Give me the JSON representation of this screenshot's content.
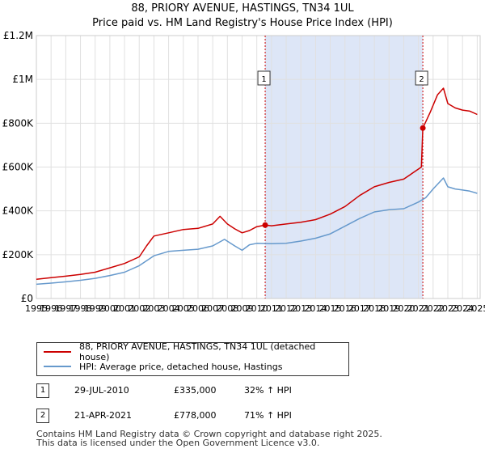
{
  "title_line1": "88, PRIORY AVENUE, HASTINGS, TN34 1UL",
  "title_line2": "Price paid vs. HM Land Registry's House Price Index (HPI)",
  "colors": {
    "property": "#cc0000",
    "hpi": "#6699cc",
    "shade": "#dde6f7",
    "vline": "#cc0000",
    "grid": "#e0e0e0"
  },
  "legend": [
    {
      "label": "88, PRIORY AVENUE, HASTINGS, TN34 1UL (detached house)"
    },
    {
      "label": "HPI: Average price, detached house, Hastings"
    }
  ],
  "transactions": [
    {
      "num": "1",
      "date": "29-JUL-2010",
      "price": "£335,000",
      "hpi_change": "32% ↑ HPI"
    },
    {
      "num": "2",
      "date": "21-APR-2021",
      "price": "£778,000",
      "hpi_change": "71% ↑ HPI"
    }
  ],
  "footer": {
    "line1": "Contains HM Land Registry data © Crown copyright and database right 2025.",
    "line2": "This data is licensed under the Open Government Licence v3.0."
  },
  "chart_data": {
    "type": "line",
    "xlabel": "",
    "ylabel": "",
    "xlim": [
      1995,
      2025.2
    ],
    "ylim": [
      0,
      1200000
    ],
    "yticks": [
      0,
      200000,
      400000,
      600000,
      800000,
      1000000,
      1200000
    ],
    "ytick_labels": [
      "£0",
      "£200K",
      "£400K",
      "£600K",
      "£800K",
      "£1M",
      "£1.2M"
    ],
    "xticks": [
      1995,
      1996,
      1997,
      1998,
      1999,
      2000,
      2001,
      2002,
      2003,
      2004,
      2005,
      2006,
      2007,
      2008,
      2009,
      2010,
      2011,
      2012,
      2013,
      2014,
      2015,
      2016,
      2017,
      2018,
      2019,
      2020,
      2021,
      2022,
      2023,
      2024,
      2025
    ],
    "xtick_labels": [
      "1995",
      "1996",
      "1997",
      "1998",
      "1999",
      "2000",
      "2001",
      "2002",
      "2003",
      "2004",
      "2005",
      "2006",
      "2007",
      "2008",
      "2009",
      "2010",
      "2011",
      "2012",
      "2013",
      "2014",
      "2015",
      "2016",
      "2017",
      "2018",
      "2019",
      "2020",
      "2021",
      "2022",
      "2023",
      "2024",
      "2025"
    ],
    "grid": true,
    "shaded_range": [
      2010.57,
      2021.3
    ],
    "markers": [
      {
        "label": "1",
        "x": 2010.57,
        "y": 335000
      },
      {
        "label": "2",
        "x": 2021.3,
        "y": 778000
      }
    ],
    "series": [
      {
        "name": "88, PRIORY AVENUE, HASTINGS, TN34 1UL (detached house)",
        "x": [
          1995,
          1996,
          1997,
          1998,
          1999,
          2000,
          2001,
          2002,
          2002.5,
          2003,
          2004,
          2005,
          2006,
          2007,
          2007.5,
          2008,
          2008.5,
          2009,
          2009.5,
          2010,
          2010.57,
          2011,
          2012,
          2013,
          2014,
          2015,
          2016,
          2017,
          2018,
          2019,
          2020,
          2021.2,
          2021.3,
          2021.8,
          2022.3,
          2022.7,
          2023,
          2023.5,
          2024,
          2024.5,
          2025
        ],
        "values": [
          88000,
          95000,
          102000,
          110000,
          120000,
          140000,
          160000,
          190000,
          240000,
          285000,
          300000,
          315000,
          320000,
          340000,
          375000,
          340000,
          318000,
          300000,
          310000,
          328000,
          335000,
          332000,
          340000,
          348000,
          360000,
          385000,
          420000,
          470000,
          510000,
          530000,
          545000,
          600000,
          778000,
          850000,
          930000,
          960000,
          890000,
          870000,
          860000,
          855000,
          840000
        ]
      },
      {
        "name": "HPI: Average price, detached house, Hastings",
        "x": [
          1995,
          1996,
          1997,
          1998,
          1999,
          2000,
          2001,
          2002,
          2003,
          2004,
          2005,
          2006,
          2007,
          2007.8,
          2008.5,
          2009,
          2009.5,
          2010,
          2011,
          2012,
          2013,
          2014,
          2015,
          2016,
          2017,
          2018,
          2019,
          2020,
          2021,
          2021.5,
          2022,
          2022.7,
          2023,
          2023.5,
          2024,
          2024.5,
          2025
        ],
        "values": [
          65000,
          70000,
          76000,
          83000,
          92000,
          105000,
          120000,
          150000,
          195000,
          215000,
          220000,
          225000,
          240000,
          270000,
          240000,
          220000,
          245000,
          252000,
          250000,
          252000,
          262000,
          275000,
          295000,
          330000,
          365000,
          395000,
          405000,
          410000,
          440000,
          460000,
          500000,
          550000,
          510000,
          500000,
          495000,
          490000,
          480000
        ]
      }
    ]
  }
}
